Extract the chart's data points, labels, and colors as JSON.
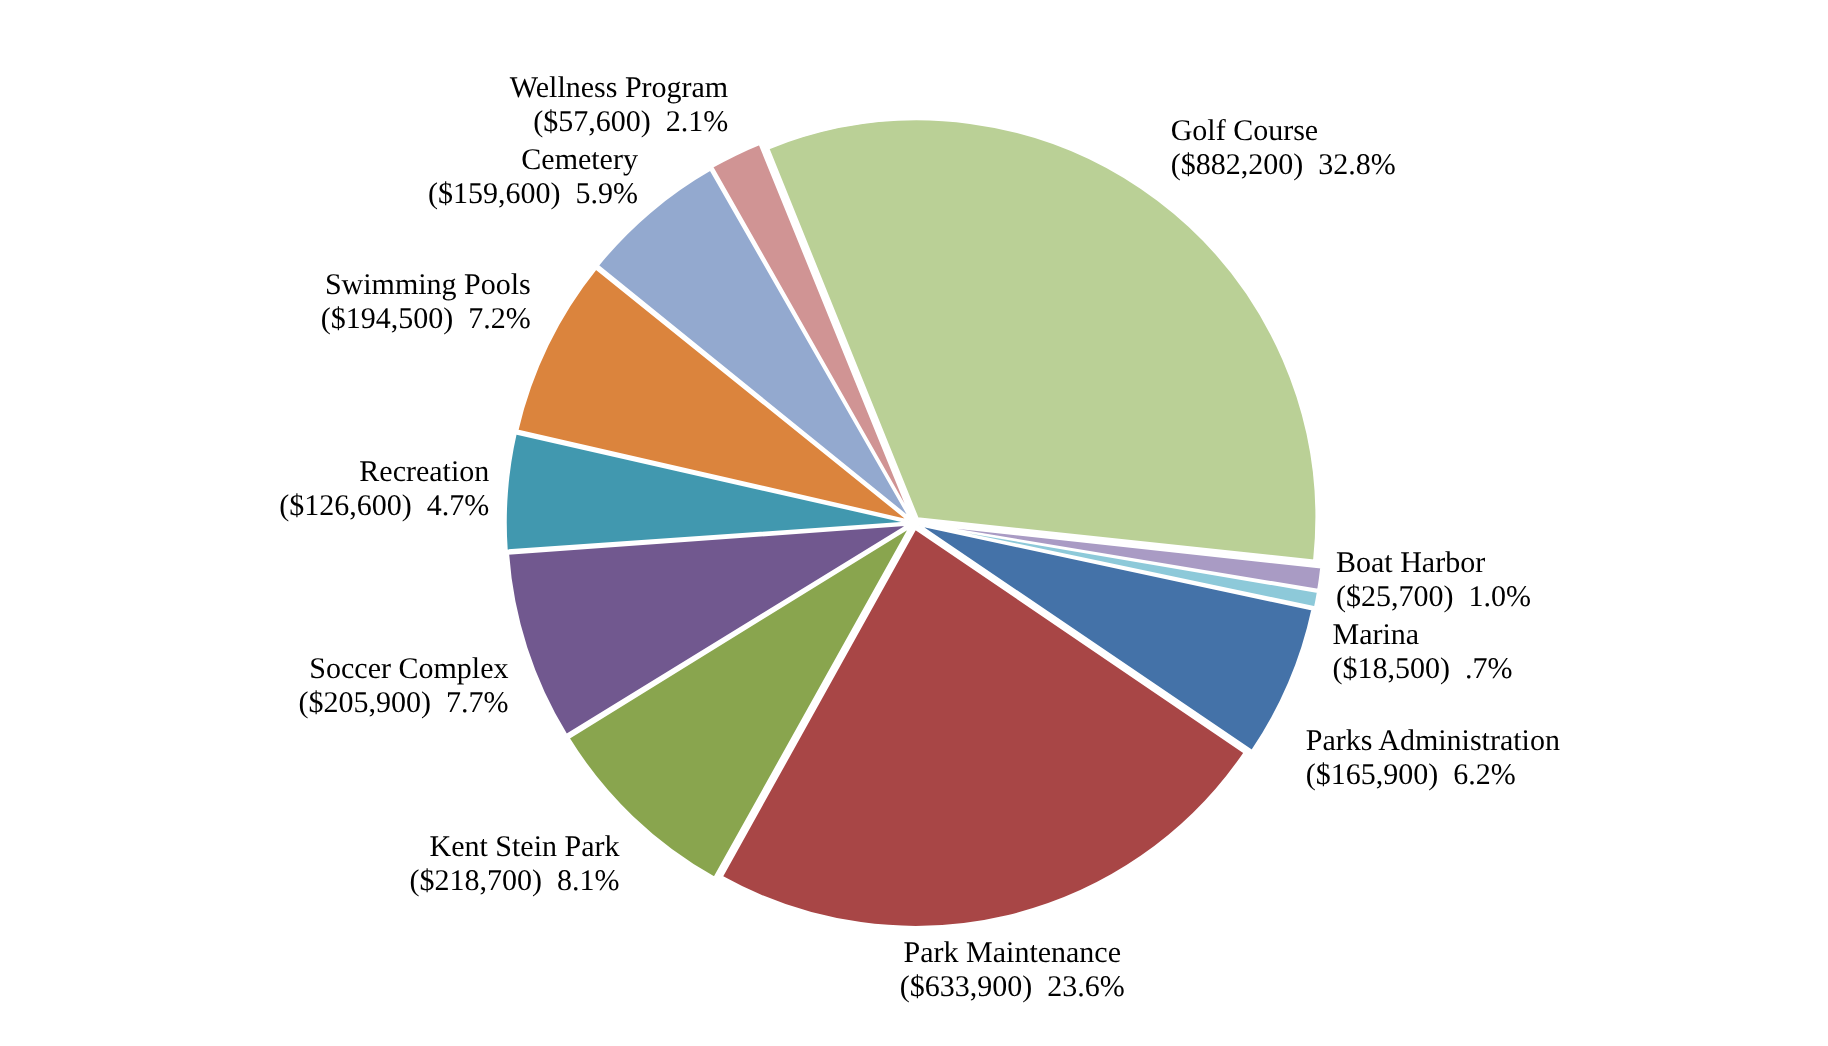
{
  "chart_data": {
    "type": "pie",
    "categories": [
      "Golf Course",
      "Boat Harbor",
      "Marina",
      "Parks Administration",
      "Park Maintenance",
      "Kent Stein Park",
      "Soccer Complex",
      "Recreation",
      "Swimming Pools",
      "Cemetery",
      "Wellness Program"
    ],
    "values": [
      882200,
      25700,
      18500,
      165900,
      633900,
      218700,
      205900,
      126600,
      194500,
      159600,
      57600
    ],
    "value_labels": [
      "($882,200)  32.8%",
      "($25,700)  1.0%",
      "($18,500)  .7%",
      "($165,900)  6.2%",
      "($633,900)  23.6%",
      "($218,700)  8.1%",
      "($205,900)  7.7%",
      "($126,600)  4.7%",
      "($194,500)  7.2%",
      "($159,600)  5.9%",
      "($57,600)  2.1%"
    ],
    "colors": [
      "#bad096",
      "#a99bc4",
      "#8dc9d9",
      "#4472a8",
      "#a84646",
      "#89a54e",
      "#71588f",
      "#4198af",
      "#db843d",
      "#93a9cf",
      "#d09494"
    ],
    "legend": false
  }
}
